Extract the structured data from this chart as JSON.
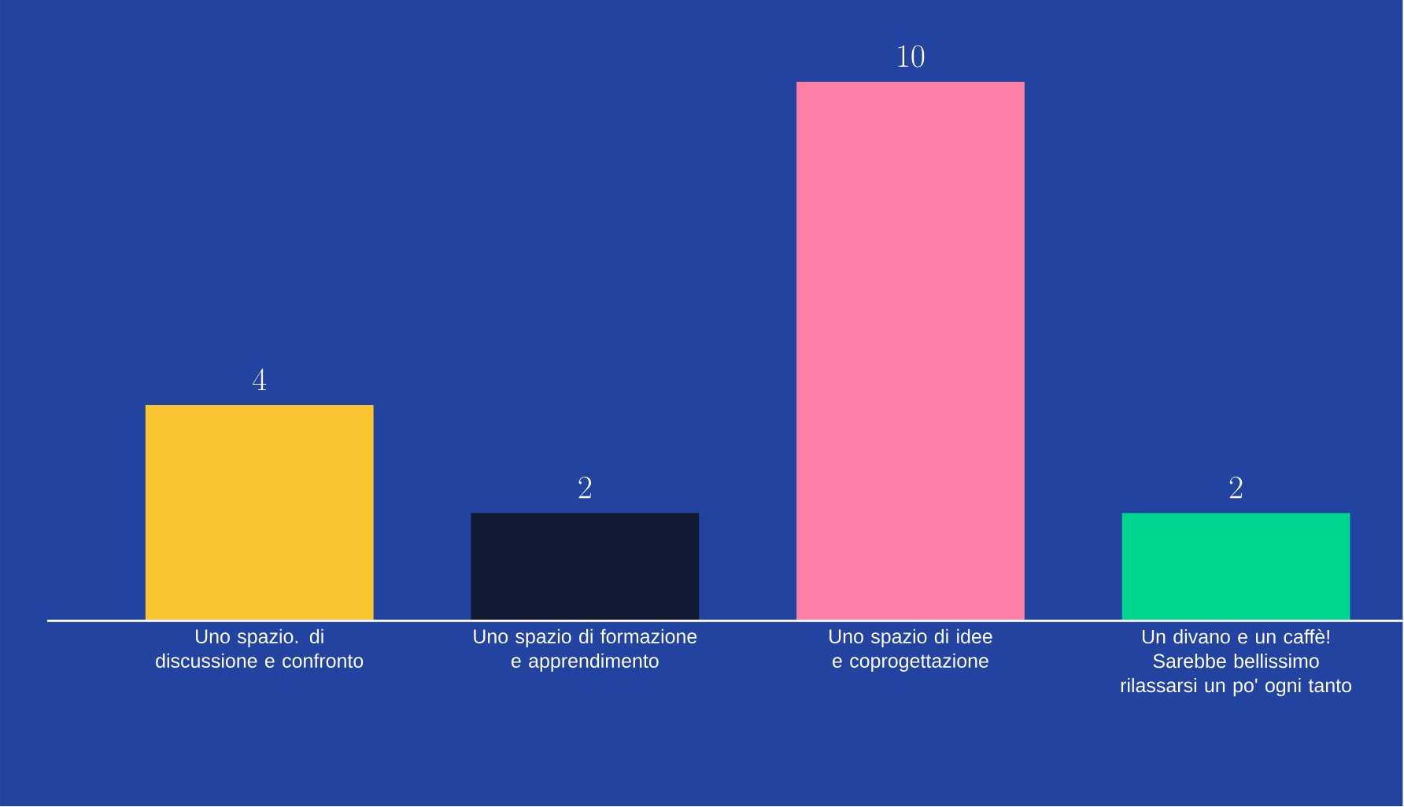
{
  "chart_data": {
    "type": "bar",
    "categories": [
      "Uno spazio. di discussione e confronto",
      "Uno spazio di formazione e apprendimento",
      "Uno spazio di idee e coprogettazione",
      "Un divano e un caffè! Sarebbe bellissimo rilassarsi un po' ogni tanto"
    ],
    "values": [
      4,
      2,
      10,
      2
    ],
    "colors": [
      "#fbc531",
      "#131a33",
      "#fc7fa8",
      "#00d68f"
    ],
    "data_labels": true
  }
}
